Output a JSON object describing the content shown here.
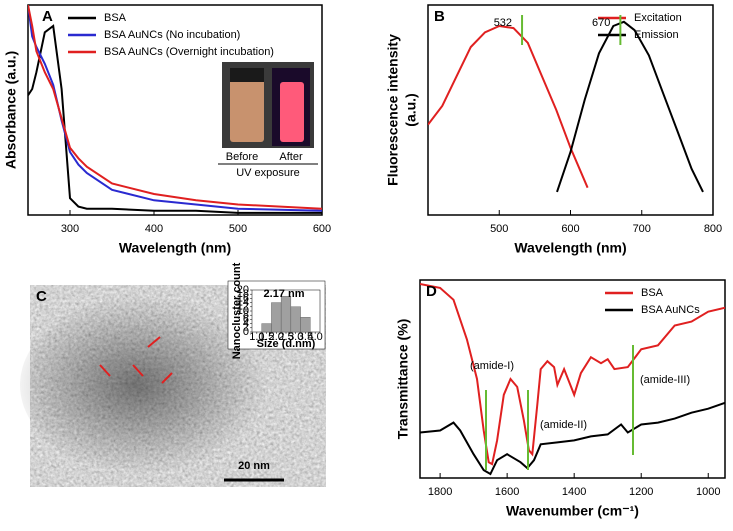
{
  "chart_data": [
    {
      "type": "line",
      "panel": "A",
      "xlabel": "Wavelength (nm)",
      "ylabel": "Absorbance (a.u.)",
      "xlim": [
        250,
        600
      ],
      "xticks": [
        300,
        400,
        500,
        600
      ],
      "ylim": [
        0,
        1
      ],
      "legend": "upper center",
      "x": [
        250,
        255,
        260,
        270,
        280,
        290,
        300,
        310,
        320,
        350,
        400,
        450,
        500,
        600
      ],
      "series": [
        {
          "name": "BSA",
          "color": "#000000",
          "values": [
            0.57,
            0.6,
            0.68,
            0.87,
            0.9,
            0.6,
            0.08,
            0.04,
            0.03,
            0.03,
            0.02,
            0.02,
            0.01,
            0.01
          ]
        },
        {
          "name": "BSA AuNCs (No incubation)",
          "color": "#2a2ad0",
          "values": [
            1.0,
            0.85,
            0.8,
            0.72,
            0.62,
            0.45,
            0.3,
            0.24,
            0.2,
            0.12,
            0.07,
            0.05,
            0.03,
            0.02
          ]
        },
        {
          "name": "BSA AuNCs (Overnight incubation)",
          "color": "#e02020",
          "values": [
            1.0,
            0.9,
            0.78,
            0.68,
            0.6,
            0.46,
            0.32,
            0.27,
            0.23,
            0.15,
            0.1,
            0.07,
            0.05,
            0.03
          ]
        }
      ],
      "inset": {
        "labels": [
          "Before",
          "After"
        ],
        "caption": "UV exposure"
      }
    },
    {
      "type": "line",
      "panel": "B",
      "xlabel": "Wavelength (nm)",
      "ylabel": [
        "Fluorescence intensity",
        "(a.u.)"
      ],
      "xlim": [
        400,
        800
      ],
      "xticks": [
        500,
        600,
        700,
        800
      ],
      "ylim": [
        0,
        1
      ],
      "legend": "upper right",
      "peaks": [
        532,
        670
      ],
      "series": [
        {
          "name": "Excitation",
          "color": "#e02020",
          "x": [
            400,
            420,
            440,
            460,
            480,
            500,
            520,
            540,
            560,
            580,
            600,
            624
          ],
          "values": [
            0.43,
            0.52,
            0.66,
            0.8,
            0.87,
            0.9,
            0.89,
            0.82,
            0.66,
            0.5,
            0.32,
            0.13
          ]
        },
        {
          "name": "Emission",
          "color": "#000000",
          "x": [
            581,
            600,
            620,
            640,
            660,
            675,
            690,
            710,
            730,
            750,
            770,
            786
          ],
          "values": [
            0.11,
            0.3,
            0.55,
            0.77,
            0.9,
            0.92,
            0.88,
            0.76,
            0.58,
            0.4,
            0.22,
            0.11
          ]
        }
      ]
    },
    {
      "type": "histogram",
      "panel": "C",
      "scale_bar": "20 nm",
      "xlabel": "Size (d.nm)",
      "ylabel": "Nanocluster count",
      "annotation": "2.17 nm",
      "color": "#a0a0a0",
      "bins": [
        1.25,
        1.75,
        2.25,
        2.75,
        3.25,
        3.75
      ],
      "values": [
        4,
        14,
        17,
        12,
        7
      ],
      "xlim": [
        0.75,
        4.25
      ],
      "xticks": [
        {
          "value": 1,
          "label": "1.0"
        },
        1.5,
        {
          "value": 2,
          "label": "2.0"
        },
        2.5,
        {
          "value": 3,
          "label": "3.0"
        },
        3.5,
        {
          "value": 4,
          "label": "4.0"
        }
      ],
      "ylim": [
        0,
        20
      ],
      "yticks": [
        0,
        2,
        4,
        6,
        8,
        10,
        12,
        14,
        16,
        18,
        20
      ]
    },
    {
      "type": "line",
      "panel": "D",
      "xlabel": "Wavenumber (cm⁻¹)",
      "ylabel": "Transmittance (%)",
      "xlim": [
        1860,
        950
      ],
      "xticks": [
        1800,
        1600,
        1400,
        1200,
        1000
      ],
      "ylim": [
        0,
        1
      ],
      "legend": "upper right",
      "annotations": [
        "(amide-I)",
        "(amide-II)",
        "(amide-III)"
      ],
      "series": [
        {
          "name": "BSA",
          "color": "#e02020",
          "x": [
            1860,
            1800,
            1760,
            1720,
            1690,
            1670,
            1655,
            1645,
            1630,
            1610,
            1590,
            1570,
            1550,
            1535,
            1525,
            1510,
            1500,
            1480,
            1460,
            1450,
            1430,
            1400,
            1380,
            1350,
            1320,
            1300,
            1280,
            1240,
            1200,
            1150,
            1100,
            1050,
            1000,
            950
          ],
          "values": [
            0.98,
            0.96,
            0.9,
            0.7,
            0.5,
            0.24,
            0.08,
            0.07,
            0.19,
            0.42,
            0.5,
            0.46,
            0.29,
            0.14,
            0.12,
            0.37,
            0.55,
            0.59,
            0.56,
            0.47,
            0.55,
            0.42,
            0.53,
            0.61,
            0.58,
            0.6,
            0.55,
            0.56,
            0.65,
            0.67,
            0.77,
            0.79,
            0.84,
            0.86
          ]
        },
        {
          "name": "BSA AuNCs",
          "color": "#000000",
          "x": [
            1860,
            1800,
            1760,
            1740,
            1700,
            1670,
            1650,
            1630,
            1600,
            1580,
            1560,
            1540,
            1520,
            1500,
            1450,
            1400,
            1350,
            1300,
            1260,
            1240,
            1200,
            1150,
            1100,
            1050,
            1000,
            950
          ],
          "values": [
            0.23,
            0.24,
            0.28,
            0.24,
            0.12,
            0.04,
            0.02,
            0.09,
            0.12,
            0.1,
            0.08,
            0.05,
            0.09,
            0.17,
            0.18,
            0.19,
            0.21,
            0.22,
            0.27,
            0.23,
            0.27,
            0.28,
            0.3,
            0.33,
            0.35,
            0.38
          ]
        }
      ]
    }
  ]
}
